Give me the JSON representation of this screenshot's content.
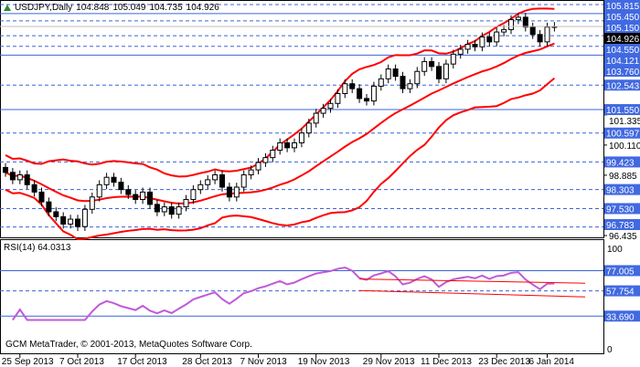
{
  "header": {
    "symbol": "USDJPY,Daily",
    "open": "104.848",
    "high": "105.049",
    "low": "104.735",
    "close": "104.926"
  },
  "rsi_header": "RSI(14) 64.0313",
  "copyright": "GCM MetaTrader, © 2001-2013, MetaQuotes Software Corp.",
  "colors": {
    "bull": "#000000",
    "bear": "#000000",
    "band": "#ff0000",
    "level": "#3c64d8",
    "rsi": "#c05ad8",
    "label_bg": "#4169e1"
  },
  "chart_data": {
    "type": "candlestick",
    "title": "USDJPY,Daily",
    "closes": [
      99.0,
      98.7,
      98.9,
      98.5,
      98.2,
      97.8,
      97.4,
      97.2,
      96.9,
      97.1,
      96.8,
      97.5,
      98.0,
      98.5,
      98.8,
      98.6,
      98.3,
      98.1,
      97.9,
      98.2,
      97.7,
      97.4,
      97.6,
      97.3,
      97.6,
      97.9,
      98.3,
      98.5,
      98.7,
      98.9,
      98.4,
      98.0,
      98.4,
      98.9,
      99.1,
      99.4,
      99.6,
      99.9,
      100.2,
      100.0,
      100.2,
      100.6,
      101.0,
      101.4,
      101.6,
      101.8,
      102.2,
      102.6,
      102.4,
      102.0,
      101.9,
      102.5,
      102.8,
      103.2,
      102.9,
      102.4,
      102.6,
      103.1,
      103.5,
      103.3,
      102.8,
      103.4,
      103.8,
      104.0,
      104.2,
      104.1,
      104.5,
      104.3,
      104.7,
      104.8,
      105.2,
      105.3,
      104.9,
      104.6,
      104.3,
      104.9,
      104.926
    ],
    "ylim": [
      96.435,
      105.815
    ],
    "y_ticks": [
      "101.335",
      "100.110",
      "98.885",
      "96.435"
    ],
    "levels": [
      {
        "value": 105.815,
        "label": "105.815",
        "style": "dashed"
      },
      {
        "value": 105.45,
        "label": "105.450",
        "style": "solid"
      },
      {
        "value": 105.15,
        "label": "105.150",
        "style": "dashed"
      },
      {
        "value": 104.55,
        "label": "104.550",
        "style": "dashed"
      },
      {
        "value": 104.121,
        "label": "104.121",
        "style": "dashed"
      },
      {
        "value": 103.76,
        "label": "103.760",
        "style": "solid"
      },
      {
        "value": 102.543,
        "label": "102.543",
        "style": "dashed"
      },
      {
        "value": 101.55,
        "label": "101.550",
        "style": "solid"
      },
      {
        "value": 100.597,
        "label": "100.597",
        "style": "dashed"
      },
      {
        "value": 99.423,
        "label": "99.423",
        "style": "dashed"
      },
      {
        "value": 98.303,
        "label": "98.303",
        "style": "dashed"
      },
      {
        "value": 97.53,
        "label": "97.530",
        "style": "dashed"
      },
      {
        "value": 96.783,
        "label": "96.783",
        "style": "dashed"
      }
    ],
    "current_price": "104.926",
    "bands": {
      "period": 20,
      "deviations": 2
    },
    "rsi": {
      "period": 14,
      "ylim": [
        0,
        100
      ],
      "y_ticks": [
        "100",
        "0"
      ],
      "levels": [
        {
          "value": 77.005,
          "label": "77.005",
          "style": "solid"
        },
        {
          "value": 57.754,
          "label": "57.754",
          "style": "dashed"
        },
        {
          "value": 33.69,
          "label": "33.690",
          "style": "solid"
        }
      ]
    },
    "x_labels": [
      {
        "index": 2,
        "label": "25 Sep 2013"
      },
      {
        "index": 10,
        "label": "7 Oct 2013"
      },
      {
        "index": 18,
        "label": "17 Oct 2013"
      },
      {
        "index": 27,
        "label": "28 Oct 2013"
      },
      {
        "index": 35,
        "label": "7 Nov 2013"
      },
      {
        "index": 43,
        "label": "19 Nov 2013"
      },
      {
        "index": 52,
        "label": "29 Nov 2013"
      },
      {
        "index": 60,
        "label": "11 Dec 2013"
      },
      {
        "index": 68,
        "label": "23 Dec 2013"
      },
      {
        "index": 75,
        "label": "6 Jan 2014"
      }
    ]
  }
}
